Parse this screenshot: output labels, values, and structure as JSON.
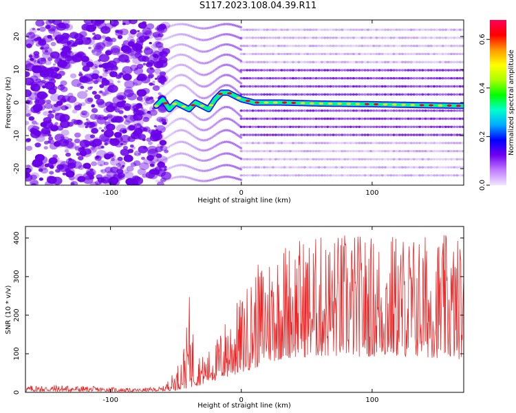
{
  "figure_title": "S117.2023.108.04.39.R11",
  "colors": {
    "snr_line": "#ee2222",
    "spectrum_low": "#ffffff",
    "spectrum_mid": "#6a00e8",
    "spectrum_peak": "#ff0000",
    "colorbar_stops": [
      "#f0e4ff",
      "#c07cff",
      "#7000f0",
      "#0000ff",
      "#00aaff",
      "#00ffcc",
      "#00ff00",
      "#aaff00",
      "#ffff00",
      "#ff9900",
      "#ff0000",
      "#ff0055"
    ]
  },
  "chart_data": [
    {
      "type": "heatmap",
      "title": "",
      "xlabel": "Height of straight line (km)",
      "ylabel": "Frequency (Hz)",
      "xlim": [
        -165,
        170
      ],
      "ylim": [
        -25,
        25
      ],
      "x_ticks": [
        "-100",
        "0",
        "100"
      ],
      "y_ticks": [
        "-20",
        "-10",
        "0",
        "10",
        "20"
      ],
      "colorbar": {
        "label": "Normalized spectral amplitude",
        "range": [
          0,
          0.68
        ],
        "ticks": [
          "0.0",
          "0.2",
          "0.4",
          "0.6"
        ]
      },
      "regions": [
        {
          "x_range": [
            -165,
            -65
          ],
          "pattern": "random noise"
        },
        {
          "x_range": [
            -65,
            0
          ],
          "pattern": "wavy bands"
        },
        {
          "x_range": [
            0,
            170
          ],
          "pattern": "horizontal harmonic lines"
        }
      ],
      "peak_ridge": {
        "x": [
          -65,
          -60,
          -55,
          -50,
          -45,
          -40,
          -35,
          -30,
          -25,
          -20,
          -15,
          -10,
          -5,
          0,
          10,
          30,
          60,
          100,
          140,
          170
        ],
        "y": [
          -1,
          1,
          -2,
          0,
          -1,
          -2,
          0,
          -1,
          -2,
          1,
          3,
          3,
          2,
          1,
          0,
          0,
          -0.3,
          -0.5,
          -0.8,
          -1
        ]
      }
    },
    {
      "type": "line",
      "title": "",
      "xlabel": "Height of straight line (km)",
      "ylabel": "SNR (10 * v/v)",
      "xlim": [
        -165,
        170
      ],
      "ylim": [
        0,
        430
      ],
      "x_ticks": [
        "-100",
        "0",
        "100"
      ],
      "y_ticks": [
        "0",
        "100",
        "200",
        "300",
        "400"
      ],
      "series": [
        {
          "x": [
            -165,
            -140,
            -110,
            -80,
            -60,
            -50,
            -45,
            -42,
            -40,
            -35,
            -30,
            -25,
            -20,
            -10,
            0,
            10,
            20,
            30,
            40,
            60,
            80,
            100,
            120,
            140,
            160,
            170
          ],
          "y_floor": [
            2,
            2,
            2,
            2,
            3,
            5,
            8,
            10,
            12,
            15,
            20,
            25,
            30,
            38,
            50,
            62,
            75,
            85,
            90,
            92,
            92,
            92,
            92,
            90,
            88,
            85
          ],
          "y_peak": [
            18,
            20,
            15,
            10,
            15,
            60,
            110,
            160,
            260,
            120,
            95,
            110,
            130,
            210,
            250,
            320,
            370,
            395,
            405,
            410,
            420,
            410,
            420,
            415,
            410,
            400
          ]
        }
      ]
    }
  ]
}
